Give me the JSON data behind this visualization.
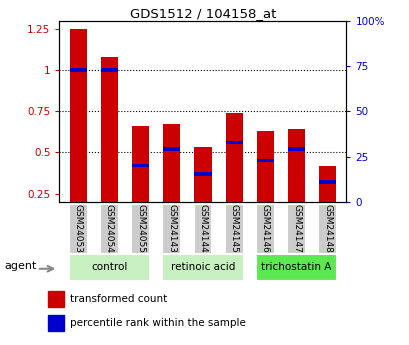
{
  "title": "GDS1512 / 104158_at",
  "samples": [
    "GSM24053",
    "GSM24054",
    "GSM24055",
    "GSM24143",
    "GSM24144",
    "GSM24145",
    "GSM24146",
    "GSM24147",
    "GSM24148"
  ],
  "red_values": [
    1.25,
    1.08,
    0.66,
    0.67,
    0.53,
    0.74,
    0.63,
    0.64,
    0.42
  ],
  "blue_values": [
    1.0,
    1.0,
    0.42,
    0.52,
    0.37,
    0.56,
    0.45,
    0.52,
    0.32
  ],
  "groups": [
    {
      "label": "control",
      "indices": [
        0,
        1,
        2
      ],
      "color": "#c8efc0"
    },
    {
      "label": "retinoic acid",
      "indices": [
        3,
        4,
        5
      ],
      "color": "#c8efc0"
    },
    {
      "label": "trichostatin A",
      "indices": [
        6,
        7,
        8
      ],
      "color": "#5ce850"
    }
  ],
  "ylim_left": [
    0.2,
    1.3
  ],
  "ylim_right": [
    0,
    100
  ],
  "yticks_left": [
    0.25,
    0.5,
    0.75,
    1.0,
    1.25
  ],
  "ytick_labels_left": [
    "0.25",
    "0.5",
    "0.75",
    "1",
    "1.25"
  ],
  "yticks_right": [
    0,
    25,
    50,
    75,
    100
  ],
  "ytick_labels_right": [
    "0",
    "25",
    "50",
    "75",
    "100%"
  ],
  "red_color": "#cc0000",
  "blue_color": "#0000cc",
  "bar_width": 0.55,
  "sample_bg": "#cccccc",
  "agent_label": "agent",
  "legend": [
    "transformed count",
    "percentile rank within the sample"
  ],
  "dotted_lines": [
    0.5,
    0.75,
    1.0
  ]
}
